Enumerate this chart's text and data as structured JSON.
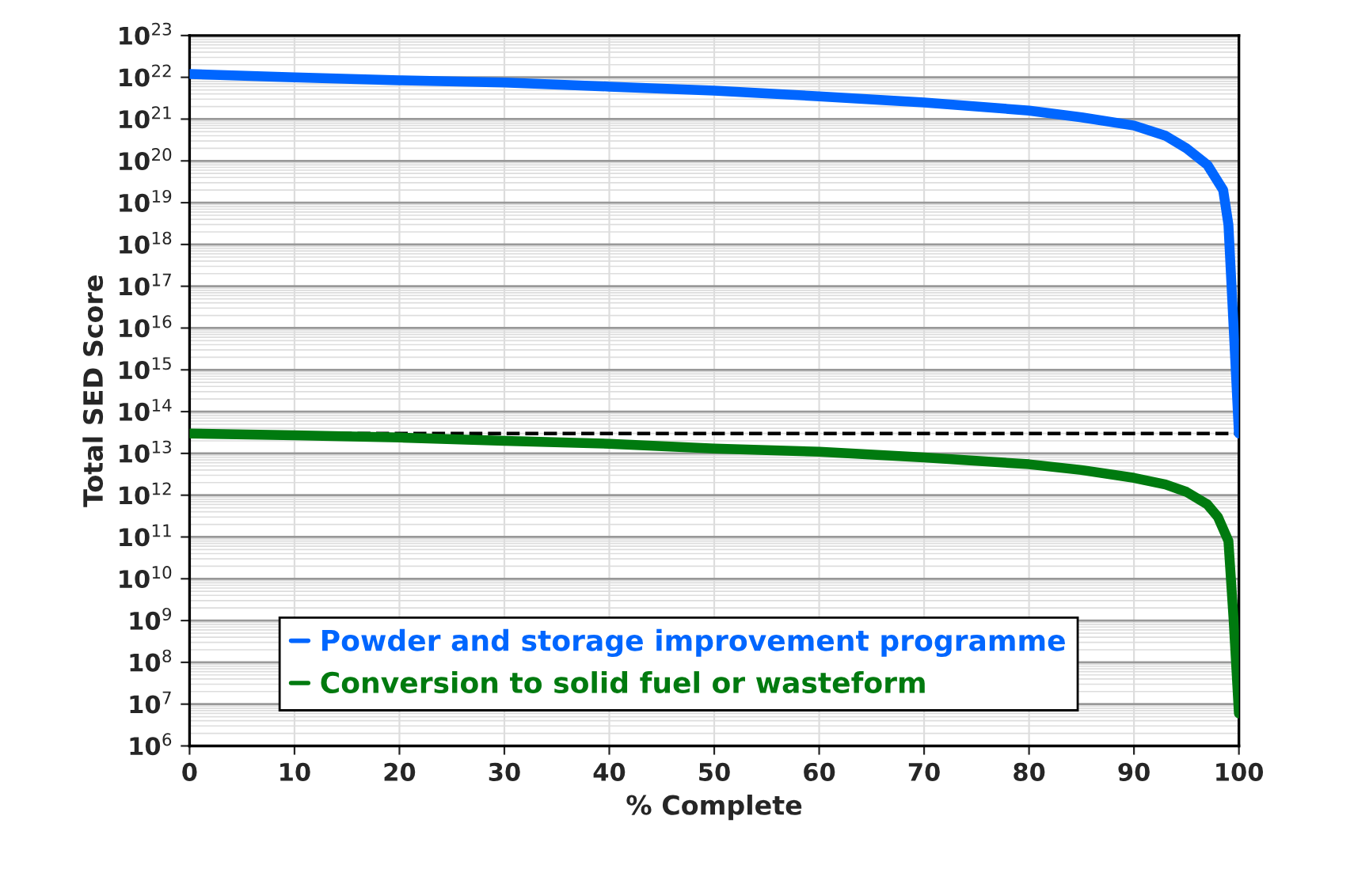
{
  "chart_data": {
    "type": "line",
    "xlabel": "% Complete",
    "ylabel": "Total SED Score",
    "log": "y",
    "xlim": [
      0,
      100
    ],
    "xticks": [
      0,
      10,
      20,
      30,
      40,
      50,
      60,
      70,
      80,
      90,
      100
    ],
    "ylim": [
      1000000.0,
      1e+23
    ],
    "yticks": [
      {
        "value": 1000000.0,
        "label": "10$^{6}$"
      },
      {
        "value": 10000000.0,
        "label": "10$^{7}$"
      },
      {
        "value": 100000000.0,
        "label": "10$^{8}$"
      },
      {
        "value": 1000000000.0,
        "label": "10$^{9}$"
      },
      {
        "value": 10000000000.0,
        "label": "10$^{10}$"
      },
      {
        "value": 100000000000.0,
        "label": "10$^{11}$"
      },
      {
        "value": 1000000000000.0,
        "label": "10$^{12}$"
      },
      {
        "value": 10000000000000.0,
        "label": "10$^{13}$"
      },
      {
        "value": 100000000000000.0,
        "label": "10$^{14}$"
      },
      {
        "value": 1000000000000000.0,
        "label": "10$^{15}$"
      },
      {
        "value": 1e+16,
        "label": "10$^{16}$"
      },
      {
        "value": 1e+17,
        "label": "10$^{17}$"
      },
      {
        "value": 1e+18,
        "label": "10$^{18}$"
      },
      {
        "value": 1e+19,
        "label": "10$^{19}$"
      },
      {
        "value": 1e+20,
        "label": "10$^{20}$"
      },
      {
        "value": 1e+21,
        "label": "10$^{21}$"
      },
      {
        "value": 1e+22,
        "label": "10$^{22}$"
      },
      {
        "value": 1e+23,
        "label": "10$^{23}$"
      }
    ],
    "grid": true,
    "legend": "bottom right",
    "marker": "none",
    "line_style": "solid",
    "ref_lines": [
      {
        "axis": "y",
        "value": 30000000000000.0,
        "color": "#000000",
        "line_style": "dashed"
      }
    ],
    "series": [
      {
        "name": "Powder and storage improvement programme",
        "color": "#0066ff",
        "x": [
          0,
          10,
          20,
          30,
          40,
          50,
          60,
          70,
          80,
          85,
          90,
          93,
          95,
          97,
          98.5,
          99,
          99.5,
          100
        ],
        "values": [
          1.2e+22,
          1e+22,
          8.5e+21,
          7.5e+21,
          6e+21,
          4.8e+21,
          3.5e+21,
          2.5e+21,
          1.6e+21,
          1.1e+21,
          7e+20,
          4e+20,
          2e+20,
          8e+19,
          2e+19,
          3e+18,
          1e+16,
          30000000000000.0
        ]
      },
      {
        "name": "Conversion to solid fuel or wasteform",
        "color": "#007a0f",
        "x": [
          0,
          10,
          20,
          30,
          40,
          50,
          60,
          70,
          80,
          85,
          90,
          93,
          95,
          97,
          98,
          99,
          99.5,
          100
        ],
        "values": [
          30000000000000.0,
          27000000000000.0,
          24000000000000.0,
          20000000000000.0,
          17000000000000.0,
          13000000000000.0,
          11000000000000.0,
          8000000000000.0,
          5500000000000.0,
          4000000000000.0,
          2600000000000.0,
          1800000000000.0,
          1200000000000.0,
          600000000000.0,
          300000000000.0,
          80000000000.0,
          1000000000.0,
          6000000.0
        ]
      }
    ]
  }
}
